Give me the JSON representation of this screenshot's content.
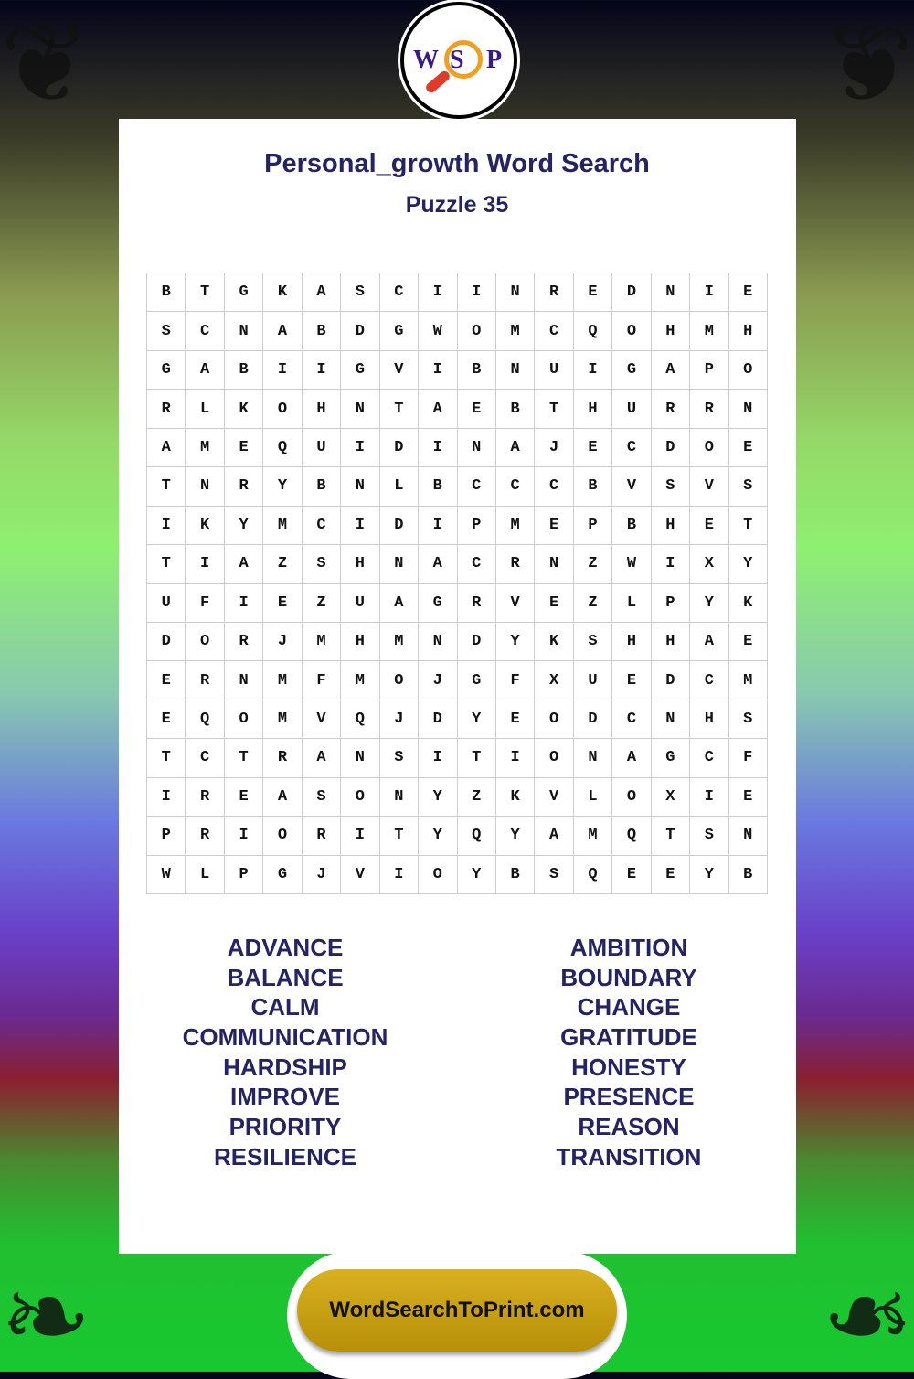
{
  "logo": {
    "letters": [
      "W",
      "S",
      "P"
    ]
  },
  "title": "Personal_growth Word Search",
  "subtitle": "Puzzle 35",
  "grid": [
    "BTGKASCIINREDNIE",
    "SCNABDGWOMCQOHMH",
    "GABIIGVIBNUIGAPO",
    "RLKOHNTAEBTHURRN",
    "AMEQUIDINAJECDOE",
    "TNRYBNLBCCCBVSVS",
    "IKYMCIDIPMEPBHET",
    "TIAZSHNACRNZWIXY",
    "UFIEZUAGRVEZLPYK",
    "DORJMHMNDYKSHHAE",
    "ERNMFMOJGFXUEDCM",
    "EQOMVQJDYEODCNHS",
    "TCTRANSITIONAGCF",
    "IREASONYZKVLOXIE",
    "PRIORITYQYAMQTSN",
    "WLPGJVIOYBSQEEYB"
  ],
  "words_left": [
    "ADVANCE",
    "BALANCE",
    "CALM",
    "COMMUNICATION",
    "HARDSHIP",
    "IMPROVE",
    "PRIORITY",
    "RESILIENCE"
  ],
  "words_right": [
    "AMBITION",
    "BOUNDARY",
    "CHANGE",
    "GRATITUDE",
    "HONESTY",
    "PRESENCE",
    "REASON",
    "TRANSITION"
  ],
  "footer": "WordSearchToPrint.com",
  "colors": {
    "title": "#242464",
    "footer_pill": "#d0a818"
  }
}
